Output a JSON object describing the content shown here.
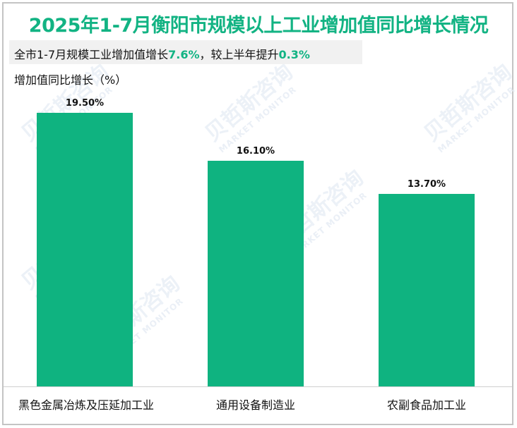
{
  "header": {
    "title": "2025年1-7月衡阳市规模以上工业增加值同比增长情况",
    "subtitle_prefix": "全市1-7月规模工业增加值增长",
    "subtitle_value1": "7.6%",
    "subtitle_mid": "，较上半年提升",
    "subtitle_value2": "0.3%",
    "y_axis_label": "增加值同比增长（%）"
  },
  "watermark": {
    "cn": "贝哲斯咨询",
    "en": "MARKET MONITOR"
  },
  "colors": {
    "accent": "#12b383",
    "bar": "#0fb380",
    "subtitle_bg": "#f1f1f1",
    "border": "#c4c4c4"
  },
  "chart_data": {
    "type": "bar",
    "title": "2025年1-7月衡阳市规模以上工业增加值同比增长情况",
    "subtitle": "全市1-7月规模工业增加值增长7.6%，较上半年提升0.3%",
    "xlabel": "",
    "ylabel": "增加值同比增长（%）",
    "categories": [
      "黑色金属冶炼及压延加工业",
      "通用设备制造业",
      "农副食品加工业"
    ],
    "values": [
      19.5,
      16.1,
      13.7
    ],
    "value_labels": [
      "19.50%",
      "16.10%",
      "13.70%"
    ],
    "ylim": [
      0,
      21
    ],
    "grid": false,
    "legend": "none"
  }
}
